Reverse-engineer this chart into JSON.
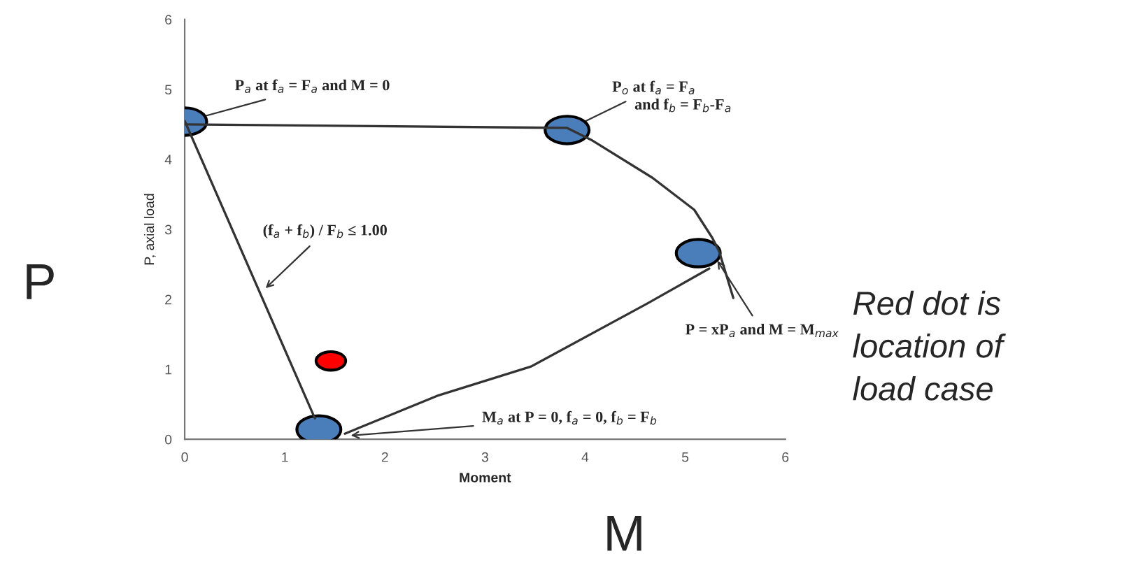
{
  "chart_data": {
    "type": "line",
    "xlabel": "Moment",
    "ylabel": "P, axial load",
    "xlim": [
      0,
      6
    ],
    "ylim": [
      0,
      6
    ],
    "xticks": [
      0,
      1,
      2,
      3,
      4,
      5,
      6
    ],
    "yticks": [
      0,
      1,
      2,
      3,
      4,
      5,
      6
    ],
    "grid": false,
    "series": [
      {
        "color": "#333333",
        "x": [
          0,
          3.82,
          4.06,
          4.67,
          5.09,
          5.27,
          5.34,
          5.48
        ],
        "values": [
          4.5,
          4.45,
          4.28,
          3.74,
          3.28,
          2.88,
          2.68,
          2.02
        ]
      },
      {
        "color": "#333333",
        "x": [
          0,
          1.3
        ],
        "values": [
          4.55,
          0.3
        ]
      },
      {
        "color": "#333333",
        "x": [
          1.6,
          2.52,
          3.46,
          4.62,
          5.24
        ],
        "values": [
          0.08,
          0.62,
          1.04,
          1.94,
          2.44
        ]
      },
      {
        "type": "scatter",
        "color": "#4a7ebb",
        "x": [
          0,
          3.82,
          5.13,
          1.34
        ],
        "values": [
          4.54,
          4.42,
          2.66,
          0.14
        ]
      },
      {
        "type": "scatter",
        "color": "#ff0000",
        "x": [
          1.46
        ],
        "values": [
          1.12
        ]
      }
    ],
    "annotations": [
      {
        "text": "P$_{a}$ at f$_{a}$ = F$_{a}$ and M = 0",
        "x": 0,
        "y": 4.54
      },
      {
        "text": "P$_{o}$ at f$_{a}$ = F$_{a}$",
        "x": 3.82,
        "y": 4.42
      },
      {
        "text": "(f$_{a}$ + f$_{b}$) / F$_{b}$ ≤ 1.00",
        "x": 0.78,
        "y": 2.12
      },
      {
        "text": "P = xP$_{a}$ and M = M$_{max}$",
        "x": 5.3,
        "y": 2.6
      },
      {
        "text": "M$_{a}$ at P = 0, f$_{a}$ = 0, f$_{b}$ = F$_{b}$",
        "x": 1.62,
        "y": 0.05
      },
      "and f$_{b}$ = F$_{b}$-F$_{a}$",
      "P",
      "M",
      "Red dot is\nlocation of\nload case"
    ]
  }
}
